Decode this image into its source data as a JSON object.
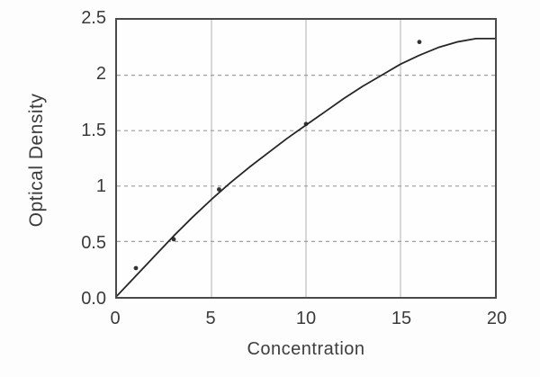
{
  "figure": {
    "background": "#fdfdfd",
    "text_color": "#3d3d3d"
  },
  "chart_data": {
    "type": "scatter",
    "title": "",
    "xlabel": "Concentration",
    "ylabel": "Optical Density",
    "xlim": [
      0,
      20
    ],
    "ylim": [
      0,
      2.5
    ],
    "x_ticks": {
      "values": [
        0,
        5,
        10,
        15,
        20
      ],
      "labels": [
        "0",
        "5",
        "10",
        "15",
        "20"
      ]
    },
    "y_ticks": {
      "values": [
        0,
        0.5,
        1,
        1.5,
        2,
        2.5
      ],
      "labels": [
        "0.0",
        "0.5",
        "1",
        "1.5",
        "2",
        "2.5"
      ]
    },
    "grid": {
      "vertical_style": "solid",
      "horizontal_style": "dashed",
      "vertical_color": "#b3b3b3",
      "horizontal_color": "#9c9c9c"
    },
    "frame_color": "#4a4a4a",
    "legend": "none",
    "series": [
      {
        "name": "measured-points",
        "type": "scatter",
        "marker": "dot",
        "color": "#333333",
        "points": [
          [
            1,
            0.26
          ],
          [
            3,
            0.52
          ],
          [
            5.4,
            0.97
          ],
          [
            10,
            1.56
          ],
          [
            16,
            2.3
          ]
        ]
      },
      {
        "name": "fitted-curve",
        "type": "line",
        "color": "#262626",
        "points": [
          [
            0,
            0.01
          ],
          [
            1,
            0.19
          ],
          [
            2,
            0.37
          ],
          [
            3,
            0.55
          ],
          [
            4,
            0.72
          ],
          [
            5,
            0.88
          ],
          [
            6,
            1.03
          ],
          [
            7,
            1.17
          ],
          [
            8,
            1.3
          ],
          [
            9,
            1.43
          ],
          [
            10,
            1.55
          ],
          [
            11,
            1.67
          ],
          [
            12,
            1.79
          ],
          [
            13,
            1.9
          ],
          [
            14,
            2.0
          ],
          [
            15,
            2.1
          ],
          [
            16,
            2.18
          ],
          [
            17,
            2.25
          ],
          [
            18,
            2.3
          ],
          [
            19,
            2.33
          ],
          [
            20,
            2.33
          ]
        ]
      }
    ]
  }
}
